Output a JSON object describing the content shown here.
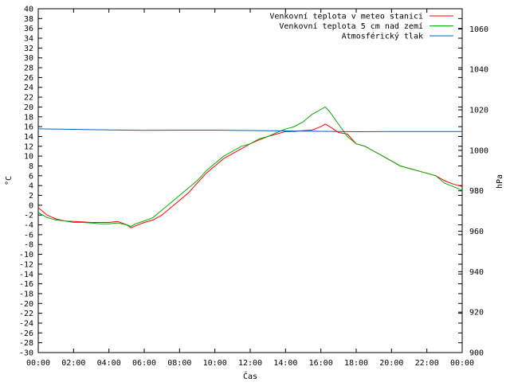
{
  "chart_data": {
    "type": "line",
    "xlabel": "Čas",
    "ylabel_left": "°C",
    "ylabel_right": "hPa",
    "x_unit": "hours",
    "x_range": [
      0,
      24
    ],
    "x_ticks": [
      "00:00",
      "02:00",
      "04:00",
      "06:00",
      "08:00",
      "10:00",
      "12:00",
      "14:00",
      "16:00",
      "18:00",
      "20:00",
      "22:00",
      "00:00"
    ],
    "ylim_left": [
      -30,
      40
    ],
    "y_ticks_left": [
      40,
      38,
      36,
      34,
      32,
      30,
      28,
      26,
      24,
      22,
      20,
      18,
      16,
      14,
      12,
      10,
      8,
      6,
      4,
      2,
      0,
      -2,
      -4,
      -6,
      -8,
      -10,
      -12,
      -14,
      -16,
      -18,
      -20,
      -22,
      -24,
      -26,
      -28,
      -30
    ],
    "ylim_right": [
      900,
      1070
    ],
    "y_ticks_right": [
      1060,
      1040,
      1020,
      1000,
      980,
      960,
      940,
      920,
      900
    ],
    "grid": false,
    "legend_position": "top-right",
    "series": [
      {
        "name": "Venkovní teplota v meteo stanici",
        "axis": "left",
        "color": "#ff0000",
        "x": [
          0,
          0.5,
          1,
          1.5,
          2,
          2.5,
          3,
          3.5,
          4,
          4.5,
          5,
          5.25,
          5.5,
          6,
          6.5,
          7,
          7.5,
          8,
          8.5,
          9,
          9.5,
          10,
          10.5,
          11,
          11.5,
          12,
          12.5,
          13,
          13.5,
          14,
          14.5,
          15,
          15.5,
          16,
          16.25,
          16.5,
          17,
          17.5,
          18,
          18.5,
          19,
          19.5,
          20,
          20.5,
          21,
          21.5,
          22,
          22.5,
          23,
          23.5,
          24
        ],
        "y": [
          -0.5,
          -2,
          -2.8,
          -3.2,
          -3.3,
          -3.4,
          -3.5,
          -3.5,
          -3.5,
          -3.3,
          -4,
          -4.6,
          -4.2,
          -3.5,
          -3,
          -2,
          -0.5,
          1,
          2.5,
          4.5,
          6.5,
          8,
          9.5,
          10.5,
          11.5,
          12.5,
          13.3,
          14,
          14.5,
          15,
          15,
          15.2,
          15.3,
          16,
          16.5,
          16,
          14.8,
          14.5,
          12.5,
          12,
          11,
          10,
          9,
          8,
          7.5,
          7,
          6.5,
          6,
          5,
          4.3,
          3.8
        ]
      },
      {
        "name": "Venkovní teplota 5 cm nad zemí",
        "axis": "left",
        "color": "#00b000",
        "x": [
          0,
          0.5,
          1,
          1.5,
          2,
          2.5,
          3,
          3.5,
          4,
          4.5,
          5,
          5.25,
          5.5,
          6,
          6.5,
          7,
          7.5,
          8,
          8.5,
          9,
          9.5,
          10,
          10.5,
          11,
          11.5,
          12,
          12.5,
          13,
          13.5,
          14,
          14.5,
          15,
          15.5,
          16,
          16.25,
          16.5,
          17,
          17.5,
          18,
          18.5,
          19,
          19.5,
          20,
          20.5,
          21,
          21.5,
          22,
          22.5,
          23,
          23.5,
          24
        ],
        "y": [
          -1.5,
          -2.5,
          -3,
          -3.2,
          -3.5,
          -3.5,
          -3.6,
          -3.8,
          -3.8,
          -3.6,
          -4,
          -4.3,
          -3.8,
          -3.2,
          -2.5,
          -1,
          0.5,
          2,
          3.5,
          5,
          7,
          8.5,
          10,
          11,
          12,
          12.5,
          13.5,
          14,
          14.8,
          15.5,
          16,
          17,
          18.5,
          19.5,
          20,
          19,
          16.5,
          14,
          12.5,
          12,
          11,
          10,
          9,
          8,
          7.5,
          7,
          6.5,
          6,
          4.5,
          3.8,
          3
        ]
      },
      {
        "name": "Atmosférický tlak",
        "axis": "right",
        "color": "#0060c0",
        "x": [
          0,
          2,
          4,
          6,
          8,
          10,
          12,
          14,
          16,
          18,
          20,
          22,
          24
        ],
        "y": [
          1010.6,
          1010.4,
          1010.1,
          1009.9,
          1010,
          1010,
          1009.8,
          1009.6,
          1009.4,
          1009.2,
          1009.3,
          1009.3,
          1009.3
        ]
      }
    ]
  }
}
